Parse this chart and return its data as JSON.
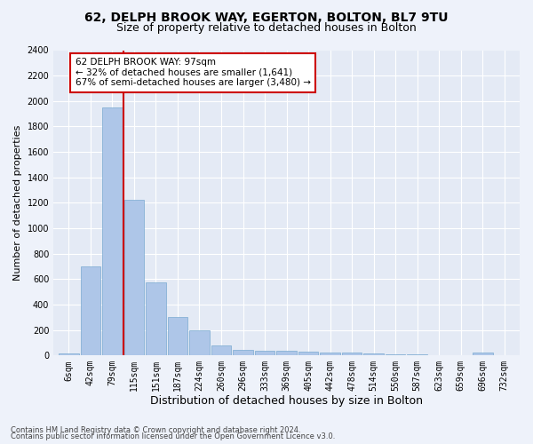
{
  "title1": "62, DELPH BROOK WAY, EGERTON, BOLTON, BL7 9TU",
  "title2": "Size of property relative to detached houses in Bolton",
  "xlabel": "Distribution of detached houses by size in Bolton",
  "ylabel": "Number of detached properties",
  "categories": [
    "6sqm",
    "42sqm",
    "79sqm",
    "115sqm",
    "151sqm",
    "187sqm",
    "224sqm",
    "260sqm",
    "296sqm",
    "333sqm",
    "369sqm",
    "405sqm",
    "442sqm",
    "478sqm",
    "514sqm",
    "550sqm",
    "587sqm",
    "623sqm",
    "659sqm",
    "696sqm",
    "732sqm"
  ],
  "values": [
    15,
    700,
    1950,
    1225,
    575,
    305,
    200,
    80,
    45,
    38,
    35,
    30,
    20,
    25,
    15,
    12,
    10,
    5,
    5,
    20,
    5
  ],
  "bar_color": "#aec6e8",
  "bar_edge_color": "#7aaad0",
  "annotation_line_color": "#cc0000",
  "annotation_box_text": "62 DELPH BROOK WAY: 97sqm\n← 32% of detached houses are smaller (1,641)\n67% of semi-detached houses are larger (3,480) →",
  "annotation_box_color": "#cc0000",
  "ylim": [
    0,
    2400
  ],
  "yticks": [
    0,
    200,
    400,
    600,
    800,
    1000,
    1200,
    1400,
    1600,
    1800,
    2000,
    2200,
    2400
  ],
  "footer1": "Contains HM Land Registry data © Crown copyright and database right 2024.",
  "footer2": "Contains public sector information licensed under the Open Government Licence v3.0.",
  "bg_color": "#eef2fa",
  "plot_bg_color": "#e4eaf5",
  "grid_color": "#ffffff",
  "title1_fontsize": 10,
  "title2_fontsize": 9,
  "axis_label_fontsize": 8,
  "tick_fontsize": 7,
  "footer_fontsize": 6,
  "bin_width": 1
}
